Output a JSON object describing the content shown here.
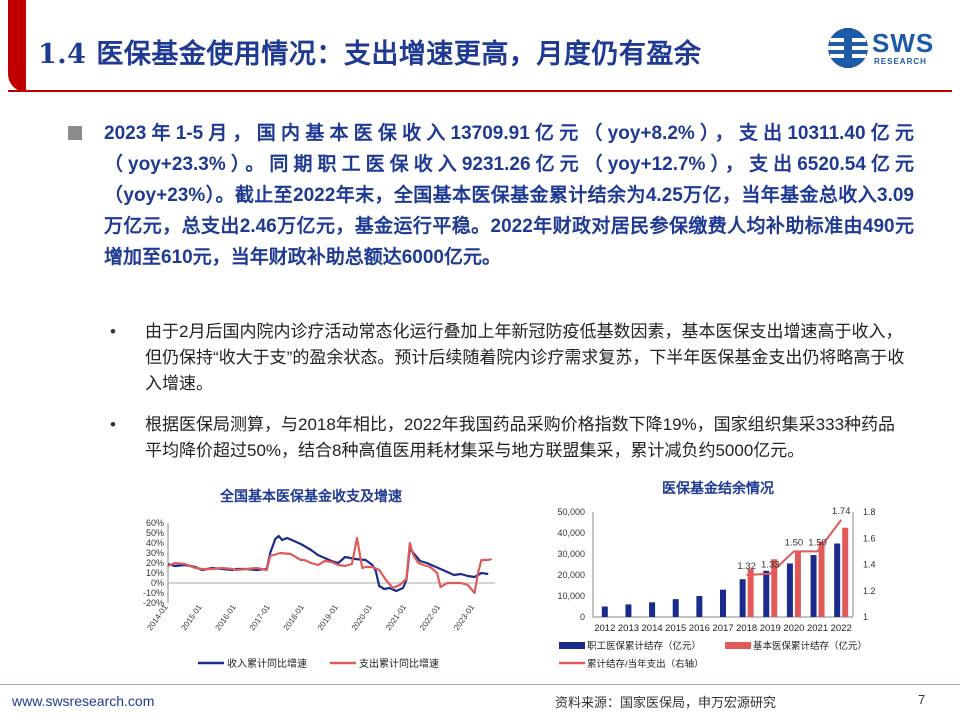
{
  "header": {
    "title": "1.4 医保基金使用情况：支出增速更高，月度仍有盈余",
    "logo_text": "SWS",
    "logo_sub": "RESEARCH"
  },
  "main_point": "2023年1-5月，国内基本医保收入13709.91亿元（yoy+8.2%），支出10311.40亿元（yoy+23.3%）。同期职工医保收入9231.26亿元（yoy+12.7%），支出6520.54亿元（yoy+23%）。截止至2022年末，全国基本医保基金累计结余为4.25万亿，当年基金总收入3.09万亿元，总支出2.46万亿元，基金运行平稳。2022年财政对居民参保缴费人均补助标准由490元增加至610元，当年财政补助总额达6000亿元。",
  "sub_points": [
    {
      "bullet": "•",
      "text": "由于2月后国内院内诊疗活动常态化运行叠加上年新冠防疫低基数因素，基本医保支出增速高于收入，但仍保持“收大于支”的盈余状态。预计后续随着院内诊疗需求复苏，下半年医保基金支出仍将略高于收入增速。"
    },
    {
      "bullet": "•",
      "text": "根据医保局测算，与2018年相比，2022年我国药品采购价格指数下降19%，国家组织集采333种药品平均降价超过50%，结合8种高值医用耗材集采与地方联盟集采，累计减负约5000亿元。"
    }
  ],
  "footer": {
    "url": "www.swsresearch.com",
    "source": "资料来源：国家医保局，申万宏源研究",
    "page": "7"
  },
  "colors": {
    "navy": "#1a2b8c",
    "red": "#e05a5a",
    "title_blue": "#1f3a93",
    "accent_red": "#c00000"
  },
  "chart_data": [
    {
      "type": "line",
      "title": "全国基本医保基金收支及增速",
      "x_tick_labels": [
        "2014-01",
        "2015-01",
        "2016-01",
        "2017-01",
        "2018-01",
        "2019-01",
        "2020-01",
        "2021-01",
        "2022-01",
        "2023-01"
      ],
      "y_tick_labels": [
        "-20%",
        "-10%",
        "0%",
        "10%",
        "20%",
        "30%",
        "40%",
        "50%",
        "60%"
      ],
      "ylim": [
        -20,
        60
      ],
      "x_range": [
        2014.0,
        2023.6
      ],
      "legend_position": "bottom",
      "series": [
        {
          "name": "收入累计同比增速",
          "color": "#1a2b8c",
          "x": [
            2014.0,
            2014.2,
            2014.5,
            2014.8,
            2015.0,
            2015.3,
            2015.6,
            2015.9,
            2016.0,
            2016.3,
            2016.6,
            2016.9,
            2017.0,
            2017.15,
            2017.25,
            2017.35,
            2017.5,
            2017.7,
            2017.9,
            2018.0,
            2018.2,
            2018.4,
            2018.6,
            2018.8,
            2019.0,
            2019.2,
            2019.5,
            2019.8,
            2020.0,
            2020.1,
            2020.2,
            2020.35,
            2020.5,
            2020.7,
            2020.9,
            2021.0,
            2021.1,
            2021.2,
            2021.4,
            2021.6,
            2021.8,
            2022.0,
            2022.2,
            2022.4,
            2022.6,
            2022.8,
            2023.0,
            2023.2,
            2023.4
          ],
          "y": [
            19,
            17,
            18,
            16,
            13,
            15,
            14,
            13,
            14,
            14,
            13,
            14,
            30,
            44,
            47,
            43,
            45,
            42,
            39,
            37,
            33,
            28,
            25,
            22,
            20,
            26,
            24,
            23,
            18,
            12,
            -3,
            -6,
            -5,
            -8,
            -5,
            3,
            35,
            30,
            22,
            20,
            17,
            14,
            11,
            8,
            9,
            7,
            6,
            10,
            9
          ]
        },
        {
          "name": "支出累计同比增速",
          "color": "#e05a5a",
          "x": [
            2014.0,
            2014.2,
            2014.5,
            2014.8,
            2015.0,
            2015.3,
            2015.6,
            2015.9,
            2016.0,
            2016.3,
            2016.6,
            2016.9,
            2017.0,
            2017.3,
            2017.6,
            2017.9,
            2018.0,
            2018.2,
            2018.4,
            2018.6,
            2018.8,
            2019.0,
            2019.2,
            2019.4,
            2019.55,
            2019.7,
            2019.8,
            2020.0,
            2020.2,
            2020.4,
            2020.6,
            2020.8,
            2021.0,
            2021.1,
            2021.2,
            2021.35,
            2021.5,
            2021.7,
            2021.9,
            2022.0,
            2022.2,
            2022.4,
            2022.6,
            2022.8,
            2023.0,
            2023.1,
            2023.2,
            2023.4,
            2023.5
          ],
          "y": [
            17,
            20,
            19,
            15,
            14,
            14,
            15,
            14,
            13,
            14,
            15,
            13,
            27,
            30,
            29,
            23,
            23,
            20,
            18,
            22,
            21,
            18,
            17,
            19,
            45,
            15,
            16,
            16,
            13,
            3,
            -5,
            -2,
            4,
            40,
            28,
            20,
            18,
            16,
            10,
            -4,
            0,
            0,
            0,
            -2,
            -10,
            10,
            23,
            23,
            24
          ]
        }
      ]
    },
    {
      "type": "bar",
      "title": "医保基金结余情况",
      "categories": [
        "2012",
        "2013",
        "2014",
        "2015",
        "2016",
        "2017",
        "2018",
        "2019",
        "2020",
        "2021",
        "2022"
      ],
      "left_ylim": [
        0,
        50000
      ],
      "left_tick_labels": [
        "0",
        "10,000",
        "20,000",
        "30,000",
        "40,000",
        "50,000"
      ],
      "right_ylim": [
        1,
        1.8
      ],
      "right_tick_labels": [
        "1",
        "1.2",
        "1.4",
        "1.6",
        "1.8"
      ],
      "legend_position": "bottom",
      "series": [
        {
          "name": "职工医保累计结存（亿元）",
          "color": "#1a2b8c",
          "values": [
            5000,
            6000,
            7000,
            8500,
            10000,
            13000,
            18000,
            22000,
            25500,
            29500,
            35000
          ]
        },
        {
          "name": "基本医保累计结存（亿元）",
          "color": "#e05a5a",
          "values": [
            null,
            null,
            null,
            null,
            null,
            null,
            23000,
            27500,
            31500,
            36000,
            42500
          ]
        },
        {
          "name": "累计结存/当年支出（右轴）",
          "color": "#e05a5a",
          "axis": "right",
          "values": [
            null,
            null,
            null,
            null,
            null,
            null,
            1.32,
            1.33,
            1.5,
            1.5,
            1.74
          ],
          "data_labels": [
            "",
            "",
            "",
            "",
            "",
            "",
            "1.32",
            "1.33",
            "1.50",
            "1.50",
            "1.74"
          ]
        }
      ]
    }
  ]
}
